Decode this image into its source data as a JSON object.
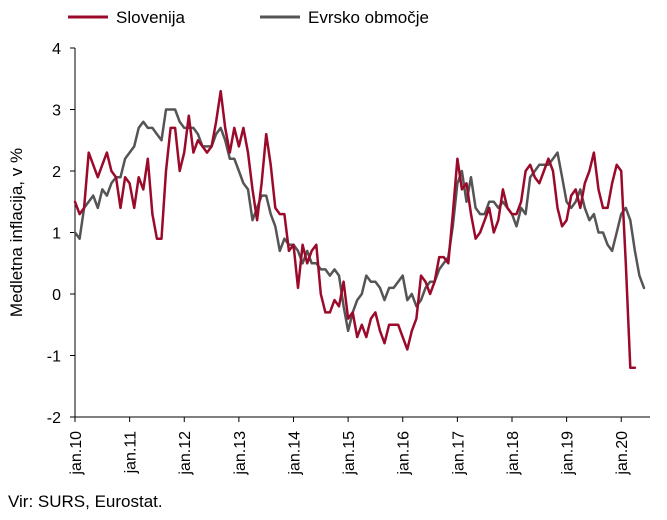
{
  "chart_data": {
    "type": "line",
    "xlabel": "",
    "ylabel": "Medletna inflacija, v %",
    "ylim": [
      -2,
      4
    ],
    "yticks": [
      -2,
      -1,
      0,
      1,
      2,
      3,
      4
    ],
    "x_tick_labels": [
      "jan.10",
      "jan.11",
      "jan.12",
      "jan.13",
      "jan.14",
      "jan.15",
      "jan.16",
      "jan.17",
      "jan.18",
      "jan.19",
      "jan.20"
    ],
    "x_start": "2010-01",
    "x_end": "2020-05",
    "legend_position": "top-left",
    "grid": false,
    "series": [
      {
        "name": "Slovenija",
        "color": "#9b0a2a",
        "values": [
          1.5,
          1.3,
          1.4,
          2.3,
          2.1,
          1.9,
          2.1,
          2.3,
          2.0,
          1.9,
          1.4,
          1.9,
          1.8,
          1.4,
          1.9,
          1.7,
          2.2,
          1.3,
          0.9,
          0.9,
          2.0,
          2.7,
          2.7,
          2.0,
          2.3,
          2.9,
          2.3,
          2.5,
          2.4,
          2.3,
          2.4,
          2.8,
          3.3,
          2.7,
          2.3,
          2.7,
          2.4,
          2.7,
          2.3,
          1.7,
          1.2,
          1.8,
          2.6,
          2.1,
          1.4,
          1.3,
          1.3,
          0.7,
          0.8,
          0.1,
          0.8,
          0.5,
          0.7,
          0.8,
          0.0,
          -0.3,
          -0.3,
          -0.1,
          -0.2,
          0.2,
          -0.4,
          -0.3,
          -0.7,
          -0.5,
          -0.7,
          -0.4,
          -0.3,
          -0.6,
          -0.8,
          -0.5,
          -0.5,
          -0.5,
          -0.7,
          -0.9,
          -0.6,
          -0.4,
          0.3,
          0.2,
          0.0,
          0.2,
          0.6,
          0.6,
          0.5,
          1.3,
          2.2,
          1.7,
          1.8,
          1.3,
          0.9,
          1.0,
          1.2,
          1.4,
          1.0,
          1.2,
          1.7,
          1.4,
          1.3,
          1.3,
          1.5,
          2.0,
          2.1,
          1.9,
          1.8,
          2.0,
          2.2,
          2.0,
          1.4,
          1.1,
          1.2,
          1.6,
          1.7,
          1.4,
          1.8,
          2.0,
          2.3,
          1.7,
          1.4,
          1.4,
          1.8,
          2.1,
          2.0,
          0.5,
          -1.2,
          -1.2
        ]
      },
      {
        "name": "Evrsko območje",
        "color": "#555555",
        "values": [
          1.0,
          0.9,
          1.4,
          1.5,
          1.6,
          1.4,
          1.7,
          1.6,
          1.8,
          1.9,
          1.9,
          2.2,
          2.3,
          2.4,
          2.7,
          2.8,
          2.7,
          2.7,
          2.6,
          2.5,
          3.0,
          3.0,
          3.0,
          2.8,
          2.7,
          2.7,
          2.7,
          2.6,
          2.4,
          2.4,
          2.4,
          2.6,
          2.7,
          2.5,
          2.2,
          2.2,
          2.0,
          1.8,
          1.7,
          1.2,
          1.4,
          1.6,
          1.6,
          1.3,
          1.1,
          0.7,
          0.9,
          0.8,
          0.8,
          0.7,
          0.5,
          0.7,
          0.5,
          0.5,
          0.4,
          0.4,
          0.3,
          0.4,
          0.3,
          -0.2,
          -0.6,
          -0.3,
          -0.1,
          0.0,
          0.3,
          0.2,
          0.2,
          0.1,
          -0.1,
          0.1,
          0.1,
          0.2,
          0.3,
          -0.1,
          0.0,
          -0.2,
          -0.1,
          0.1,
          0.2,
          0.2,
          0.4,
          0.5,
          0.6,
          1.1,
          1.8,
          2.0,
          1.5,
          1.9,
          1.4,
          1.3,
          1.3,
          1.5,
          1.5,
          1.4,
          1.5,
          1.4,
          1.3,
          1.1,
          1.4,
          1.3,
          1.9,
          2.0,
          2.1,
          2.1,
          2.1,
          2.2,
          2.3,
          1.9,
          1.5,
          1.4,
          1.5,
          1.7,
          1.4,
          1.2,
          1.3,
          1.0,
          1.0,
          0.8,
          0.7,
          1.0,
          1.3,
          1.4,
          1.2,
          0.7,
          0.3,
          0.1
        ]
      }
    ]
  },
  "source_text": "Vir: SURS, Eurostat."
}
